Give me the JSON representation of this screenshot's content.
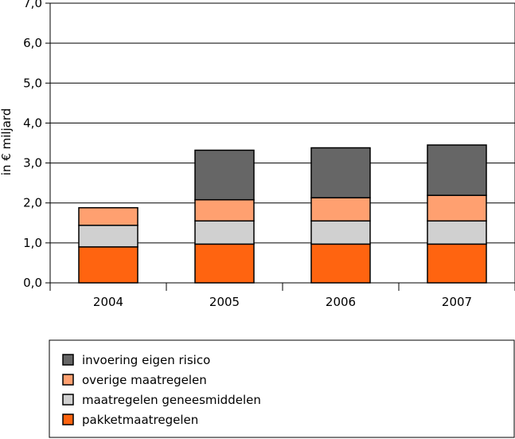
{
  "chart_data": {
    "type": "bar",
    "stacked": true,
    "title": "",
    "xlabel": "",
    "ylabel": "in € miljard",
    "ylim": [
      0,
      7
    ],
    "y_ticks": [
      "0,0",
      "1,0",
      "2,0",
      "3,0",
      "4,0",
      "5,0",
      "6,0",
      "7,0"
    ],
    "categories": [
      "2004",
      "2005",
      "2006",
      "2007"
    ],
    "series": [
      {
        "name": "pakketmaatregelen",
        "color": "#ff6410",
        "values": [
          0.9,
          0.97,
          0.97,
          0.97
        ]
      },
      {
        "name": "maatregelen geneesmiddelen",
        "color": "#d0d0d0",
        "values": [
          0.54,
          0.58,
          0.58,
          0.58
        ]
      },
      {
        "name": "overige maatregelen",
        "color": "#ffa070",
        "values": [
          0.44,
          0.53,
          0.58,
          0.64
        ]
      },
      {
        "name": "invoering eigen risico",
        "color": "#666666",
        "values": [
          0,
          1.24,
          1.25,
          1.26
        ]
      }
    ],
    "legend_order": [
      3,
      2,
      1,
      0
    ],
    "grid": true,
    "legend_position": "bottom"
  }
}
